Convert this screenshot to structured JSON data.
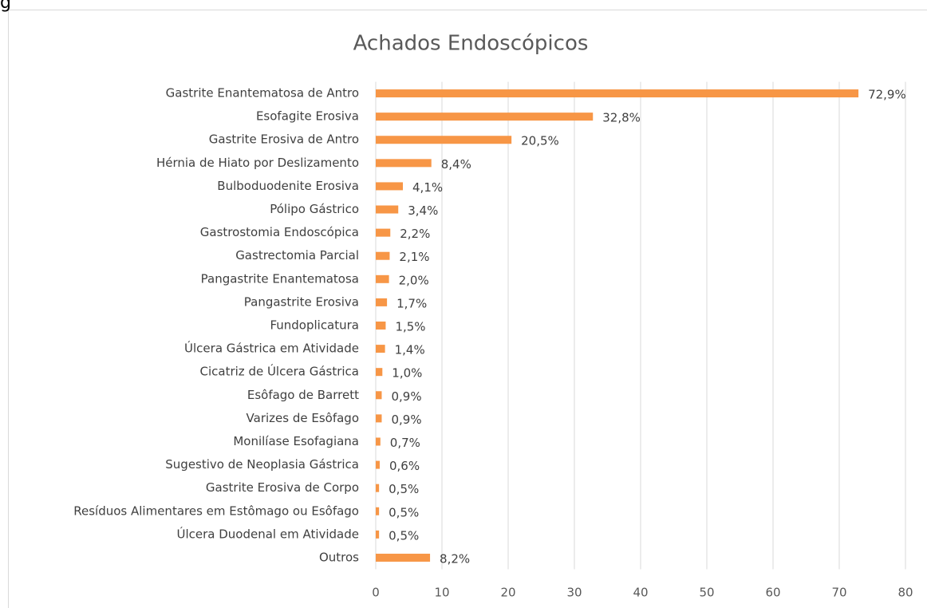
{
  "corner_fragment": "g",
  "chart_data": {
    "type": "bar",
    "orientation": "horizontal",
    "title": "Achados Endoscópicos",
    "categories": [
      "Gastrite Enantematosa de Antro",
      "Esofagite Erosiva",
      "Gastrite Erosiva de Antro",
      "Hérnia de Hiato por Deslizamento",
      "Bulboduodenite Erosiva",
      "Pólipo Gástrico",
      "Gastrostomia Endoscópica",
      "Gastrectomia Parcial",
      "Pangastrite Enantematosa",
      "Pangastrite Erosiva",
      "Fundoplicatura",
      "Úlcera Gástrica em Atividade",
      "Cicatriz de Úlcera Gástrica",
      "Esôfago de Barrett",
      "Varizes de Esôfago",
      "Monilíase Esofagiana",
      "Sugestivo de Neoplasia Gástrica",
      "Gastrite Erosiva de Corpo",
      "Resíduos Alimentares em Estômago ou Esôfago",
      "Úlcera Duodenal em Atividade",
      "Outros"
    ],
    "values": [
      72.9,
      32.8,
      20.5,
      8.4,
      4.1,
      3.4,
      2.2,
      2.1,
      2.0,
      1.7,
      1.5,
      1.4,
      1.0,
      0.9,
      0.9,
      0.7,
      0.6,
      0.5,
      0.5,
      0.5,
      8.2
    ],
    "value_labels": [
      "72,9%",
      "32,8%",
      "20,5%",
      "8,4%",
      "4,1%",
      "3,4%",
      "2,2%",
      "2,1%",
      "2,0%",
      "1,7%",
      "1,5%",
      "1,4%",
      "1,0%",
      "0,9%",
      "0,9%",
      "0,7%",
      "0,6%",
      "0,5%",
      "0,5%",
      "0,5%",
      "8,2%"
    ],
    "color": "#f79646",
    "xlim": [
      0,
      80
    ],
    "xticks": [
      0,
      10,
      20,
      30,
      40,
      50,
      60,
      70,
      80
    ],
    "grid": true
  }
}
